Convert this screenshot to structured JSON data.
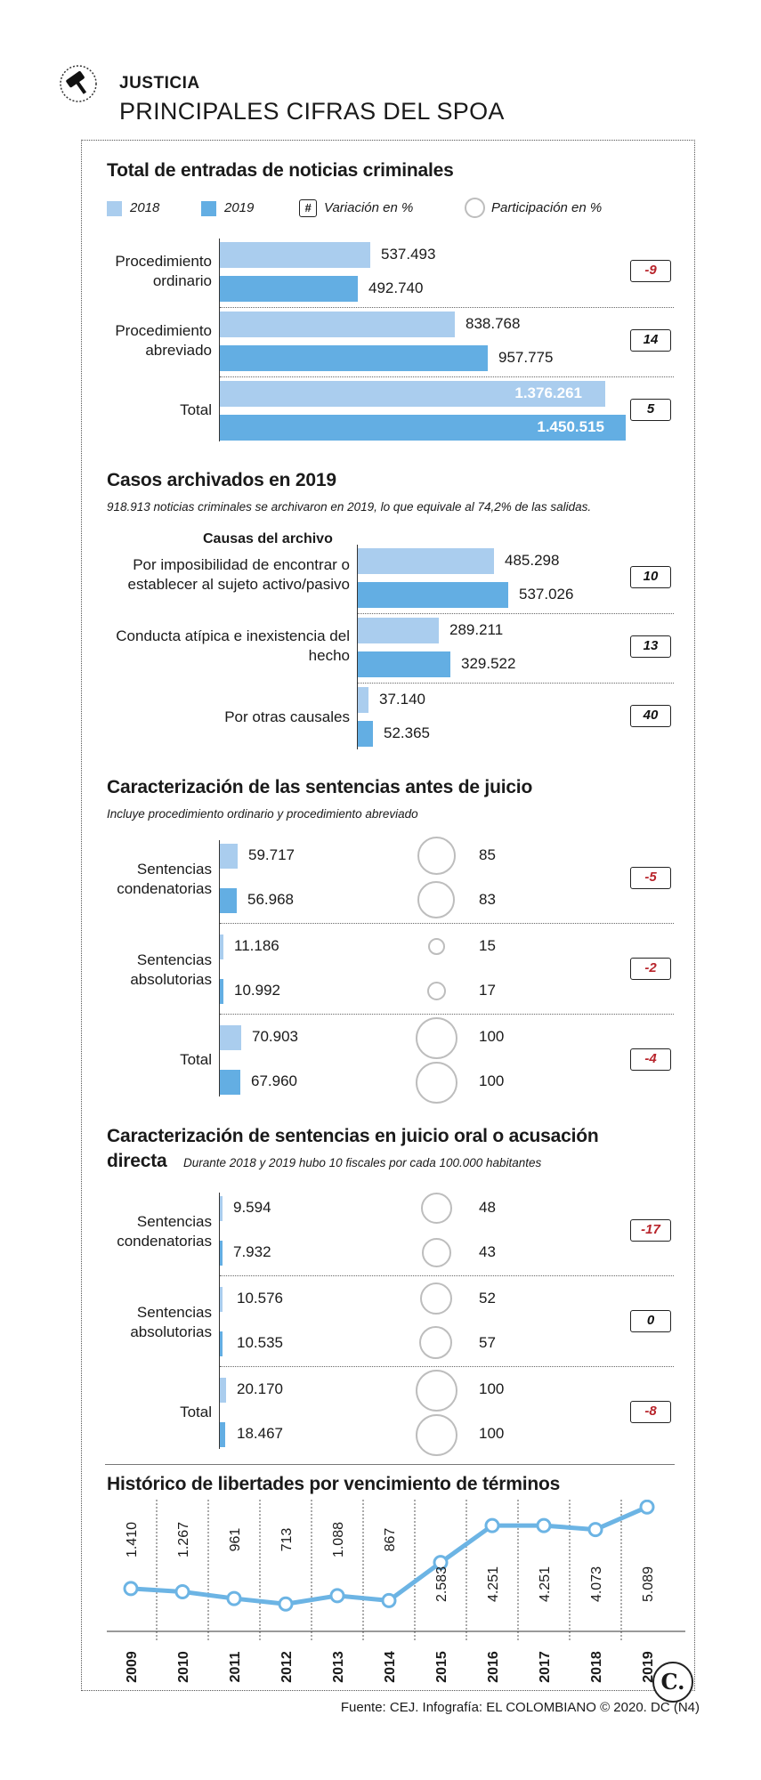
{
  "header": {
    "kicker": "JUSTICIA",
    "title": "PRINCIPALES CIFRAS DEL SPOA"
  },
  "legend": {
    "y2018": "2018",
    "y2019": "2019",
    "variation": "Variación en %",
    "variation_symbol": "#",
    "participation": "Participación en %"
  },
  "colors": {
    "y2018": "#aacdee",
    "y2019": "#63aee3",
    "negative": "#b8242b",
    "line": "#6cb4e4"
  },
  "sections": {
    "entradas": {
      "title": "Total de entradas de noticias criminales",
      "rows": [
        {
          "label": "Procedimiento ordinario",
          "v2018": "537.493",
          "v2019": "492.740",
          "var": "-9"
        },
        {
          "label": "Procedimiento abreviado",
          "v2018": "838.768",
          "v2019": "957.775",
          "var": "14"
        },
        {
          "label": "Total",
          "v2018": "1.376.261",
          "v2019": "1.450.515",
          "var": "5"
        }
      ]
    },
    "archivados": {
      "title": "Casos archivados en 2019",
      "subtitle": "918.913 noticias criminales se archivaron en 2019, lo que equivale al 74,2% de las salidas.",
      "causes_header": "Causas del archivo",
      "rows": [
        {
          "label": "Por imposibilidad de encontrar o establecer al sujeto activo/pasivo",
          "v2018": "485.298",
          "v2019": "537.026",
          "var": "10"
        },
        {
          "label": "Conducta atípica e inexistencia del hecho",
          "v2018": "289.211",
          "v2019": "329.522",
          "var": "13"
        },
        {
          "label": "Por otras causales",
          "v2018": "37.140",
          "v2019": "52.365",
          "var": "40"
        }
      ]
    },
    "antes_juicio": {
      "title": "Caracterización de las sentencias antes de juicio",
      "subtitle": "Incluye procedimiento ordinario y procedimiento abreviado",
      "rows": [
        {
          "label": "Sentencias condenatorias",
          "v2018": "59.717",
          "v2019": "56.968",
          "p2018": "85",
          "p2019": "83",
          "var": "-5"
        },
        {
          "label": "Sentencias absolutorias",
          "v2018": "11.186",
          "v2019": "10.992",
          "p2018": "15",
          "p2019": "17",
          "var": "-2"
        },
        {
          "label": "Total",
          "v2018": "70.903",
          "v2019": "67.960",
          "p2018": "100",
          "p2019": "100",
          "var": "-4"
        }
      ]
    },
    "juicio_oral": {
      "title_line1": "Caracterización de sentencias en juicio oral o acusación",
      "title_line2": "directa",
      "subtitle": "Durante 2018 y 2019 hubo 10 fiscales por cada 100.000 habitantes",
      "rows": [
        {
          "label": "Sentencias condenatorias",
          "v2018": "9.594",
          "v2019": "7.932",
          "p2018": "48",
          "p2019": "43",
          "var": "-17"
        },
        {
          "label": "Sentencias absolutorias",
          "v2018": "10.576",
          "v2019": "10.535",
          "p2018": "52",
          "p2019": "57",
          "var": "0"
        },
        {
          "label": "Total",
          "v2018": "20.170",
          "v2019": "18.467",
          "p2018": "100",
          "p2019": "100",
          "var": "-8"
        }
      ]
    },
    "historico": {
      "title": "Histórico de libertades por vencimiento de términos"
    }
  },
  "chart_data": [
    {
      "type": "bar",
      "title": "Total de entradas de noticias criminales",
      "categories": [
        "Procedimiento ordinario",
        "Procedimiento abreviado",
        "Total"
      ],
      "series": [
        {
          "name": "2018",
          "values": [
            537493,
            838768,
            1376261
          ]
        },
        {
          "name": "2019",
          "values": [
            492740,
            957775,
            1450515
          ]
        }
      ],
      "variation_pct": [
        -9,
        14,
        5
      ]
    },
    {
      "type": "bar",
      "title": "Casos archivados en 2019",
      "categories": [
        "Por imposibilidad de encontrar o establecer al sujeto activo/pasivo",
        "Conducta atípica e inexistencia del hecho",
        "Por otras causales"
      ],
      "series": [
        {
          "name": "2018",
          "values": [
            485298,
            289211,
            37140
          ]
        },
        {
          "name": "2019",
          "values": [
            537026,
            329522,
            52365
          ]
        }
      ],
      "variation_pct": [
        10,
        13,
        40
      ]
    },
    {
      "type": "bar",
      "title": "Caracterización de las sentencias antes de juicio",
      "categories": [
        "Sentencias condenatorias",
        "Sentencias absolutorias",
        "Total"
      ],
      "series": [
        {
          "name": "2018",
          "values": [
            59717,
            11186,
            70903
          ]
        },
        {
          "name": "2019",
          "values": [
            56968,
            10992,
            67960
          ]
        }
      ],
      "participation_pct": {
        "2018": [
          85,
          15,
          100
        ],
        "2019": [
          83,
          17,
          100
        ]
      },
      "variation_pct": [
        -5,
        -2,
        -4
      ]
    },
    {
      "type": "bar",
      "title": "Caracterización de sentencias en juicio oral o acusación directa",
      "categories": [
        "Sentencias condenatorias",
        "Sentencias absolutorias",
        "Total"
      ],
      "series": [
        {
          "name": "2018",
          "values": [
            9594,
            10576,
            20170
          ]
        },
        {
          "name": "2019",
          "values": [
            7932,
            10535,
            18467
          ]
        }
      ],
      "participation_pct": {
        "2018": [
          48,
          52,
          100
        ],
        "2019": [
          43,
          57,
          100
        ]
      },
      "variation_pct": [
        -17,
        0,
        -8
      ]
    },
    {
      "type": "line",
      "title": "Histórico de libertades por vencimiento de términos",
      "x": [
        "2009",
        "2010",
        "2011",
        "2012",
        "2013",
        "2014",
        "2015",
        "2016",
        "2017",
        "2018",
        "2019"
      ],
      "values": [
        1410,
        1267,
        961,
        713,
        1088,
        867,
        2583,
        4251,
        4251,
        4073,
        5089
      ],
      "labels": [
        "1.410",
        "1.267",
        "961",
        "713",
        "1.088",
        "867",
        "2.583",
        "4.251",
        "4.251",
        "4.073",
        "5.089"
      ],
      "ylim": [
        0,
        5100
      ]
    }
  ],
  "footer": {
    "source": "Fuente: CEJ. Infografía: EL COLOMBIANO © 2020. DC (N4)",
    "logo": "C."
  }
}
